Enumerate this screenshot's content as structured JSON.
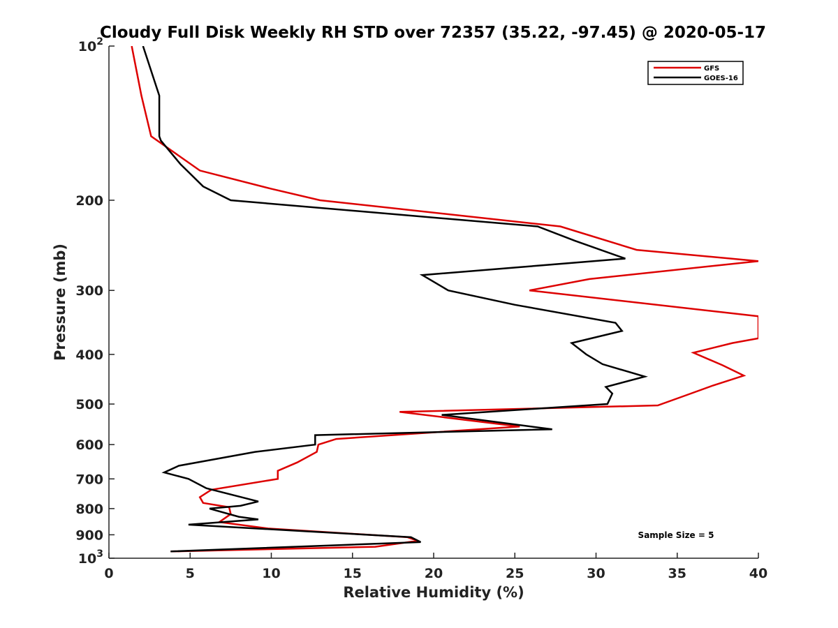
{
  "chart_data": {
    "type": "line",
    "title": "Cloudy Full Disk Weekly RH STD over 72357 (35.22, -97.45) @ 2020-05-17",
    "xlabel": "Relative Humidity (%)",
    "ylabel": "Pressure (mb)",
    "xlim": [
      0,
      40
    ],
    "ylim": [
      100,
      1000
    ],
    "yscale": "log",
    "y_reversed": true,
    "grid": false,
    "legend_position": "top-right",
    "x_ticks": [
      0,
      5,
      10,
      15,
      20,
      25,
      30,
      35,
      40
    ],
    "y_ticks": [
      {
        "value": 100,
        "base": "10",
        "exp": "2"
      },
      {
        "value": 200,
        "label": "200"
      },
      {
        "value": 300,
        "label": "300"
      },
      {
        "value": 400,
        "label": "400"
      },
      {
        "value": 500,
        "label": "500"
      },
      {
        "value": 600,
        "label": "600"
      },
      {
        "value": 700,
        "label": "700"
      },
      {
        "value": 800,
        "label": "800"
      },
      {
        "value": 900,
        "label": "900"
      },
      {
        "value": 1000,
        "base": "10",
        "exp": "3"
      }
    ],
    "annotation": "Sample Size = 5",
    "series": [
      {
        "name": "GFS",
        "color": "#dd0000",
        "points": [
          [
            1.4,
            100
          ],
          [
            2.0,
            125
          ],
          [
            2.6,
            150
          ],
          [
            5.6,
            175
          ],
          [
            10.0,
            190
          ],
          [
            13.0,
            200
          ],
          [
            27.8,
            225
          ],
          [
            32.5,
            250
          ],
          [
            40.0,
            263
          ],
          [
            29.6,
            285
          ],
          [
            25.9,
            300
          ],
          [
            40.0,
            337
          ],
          [
            40.0,
            372
          ],
          [
            38.4,
            380
          ],
          [
            36.0,
            397
          ],
          [
            37.8,
            420
          ],
          [
            39.1,
            440
          ],
          [
            37.2,
            460
          ],
          [
            35.6,
            480
          ],
          [
            33.8,
            503
          ],
          [
            17.9,
            518
          ],
          [
            25.3,
            553
          ],
          [
            14.0,
            585
          ],
          [
            12.9,
            600
          ],
          [
            12.8,
            620
          ],
          [
            11.6,
            650
          ],
          [
            10.4,
            675
          ],
          [
            10.4,
            700
          ],
          [
            6.3,
            735
          ],
          [
            5.6,
            760
          ],
          [
            5.8,
            780
          ],
          [
            7.4,
            795
          ],
          [
            7.5,
            820
          ],
          [
            6.8,
            850
          ],
          [
            9.8,
            875
          ],
          [
            18.4,
            910
          ],
          [
            19.0,
            925
          ],
          [
            16.4,
            950
          ],
          [
            3.8,
            970
          ]
        ]
      },
      {
        "name": "GOES-16",
        "color": "#000000",
        "points": [
          [
            2.1,
            100
          ],
          [
            3.1,
            125
          ],
          [
            3.1,
            150
          ],
          [
            3.2,
            153
          ],
          [
            4.4,
            170
          ],
          [
            5.8,
            188
          ],
          [
            7.5,
            200
          ],
          [
            26.4,
            225
          ],
          [
            28.7,
            240
          ],
          [
            31.8,
            260
          ],
          [
            19.3,
            280
          ],
          [
            20.9,
            300
          ],
          [
            25.0,
            320
          ],
          [
            31.2,
            347
          ],
          [
            31.6,
            360
          ],
          [
            28.5,
            380
          ],
          [
            29.4,
            400
          ],
          [
            30.4,
            418
          ],
          [
            33.0,
            442
          ],
          [
            30.6,
            463
          ],
          [
            31.0,
            477
          ],
          [
            30.7,
            500
          ],
          [
            20.5,
            525
          ],
          [
            27.3,
            560
          ],
          [
            12.7,
            575
          ],
          [
            12.7,
            600
          ],
          [
            9.0,
            620
          ],
          [
            4.3,
            660
          ],
          [
            3.4,
            680
          ],
          [
            4.9,
            700
          ],
          [
            6.0,
            730
          ],
          [
            9.2,
            775
          ],
          [
            8.1,
            790
          ],
          [
            6.2,
            800
          ],
          [
            8.0,
            830
          ],
          [
            9.2,
            840
          ],
          [
            4.9,
            860
          ],
          [
            18.6,
            910
          ],
          [
            19.2,
            930
          ],
          [
            3.8,
            970
          ]
        ]
      }
    ]
  }
}
